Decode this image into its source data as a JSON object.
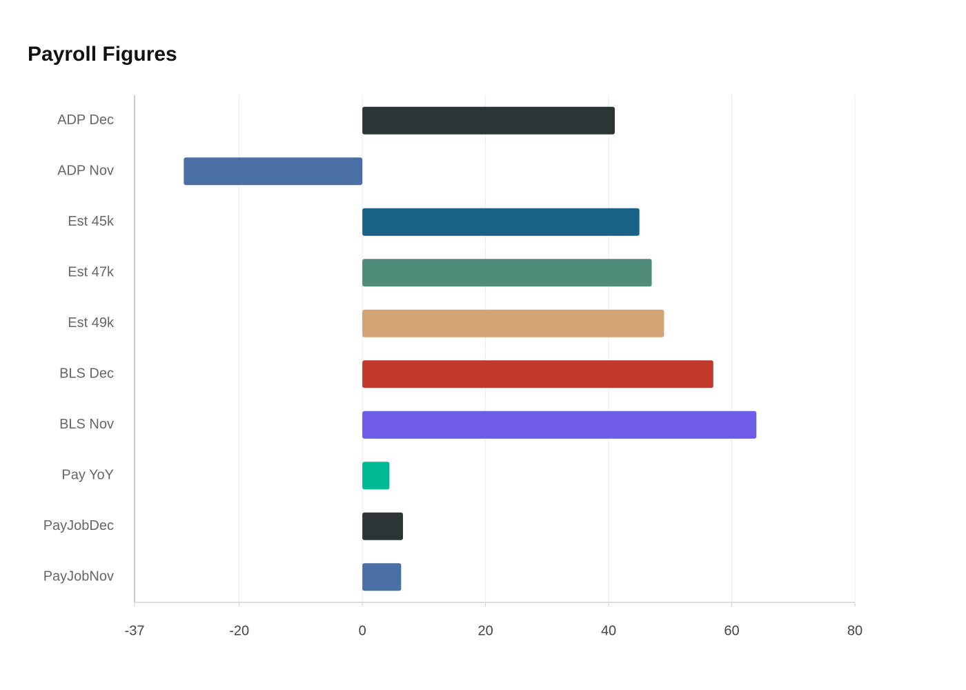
{
  "chart_data": {
    "type": "bar",
    "orientation": "horizontal",
    "title": "Payroll Figures",
    "categories": [
      "ADP Dec",
      "ADP Nov",
      "Est 45k",
      "Est 47k",
      "Est 49k",
      "BLS Dec",
      "BLS Nov",
      "Pay YoY",
      "PayJobDec",
      "PayJobNov"
    ],
    "values": [
      41,
      -29,
      45,
      47,
      49,
      57,
      64,
      4.4,
      6.6,
      6.3
    ],
    "colors": [
      "#2d3436",
      "#4a6fa5",
      "#1a6188",
      "#4e8b79",
      "#d4a373",
      "#c0392b",
      "#6c5ce7",
      "#00b894",
      "#2d3436",
      "#4a6fa5"
    ],
    "xlim": [
      -37,
      80
    ],
    "xticks": [
      -37,
      -20,
      0,
      20,
      40,
      60,
      80
    ],
    "grid": true
  }
}
